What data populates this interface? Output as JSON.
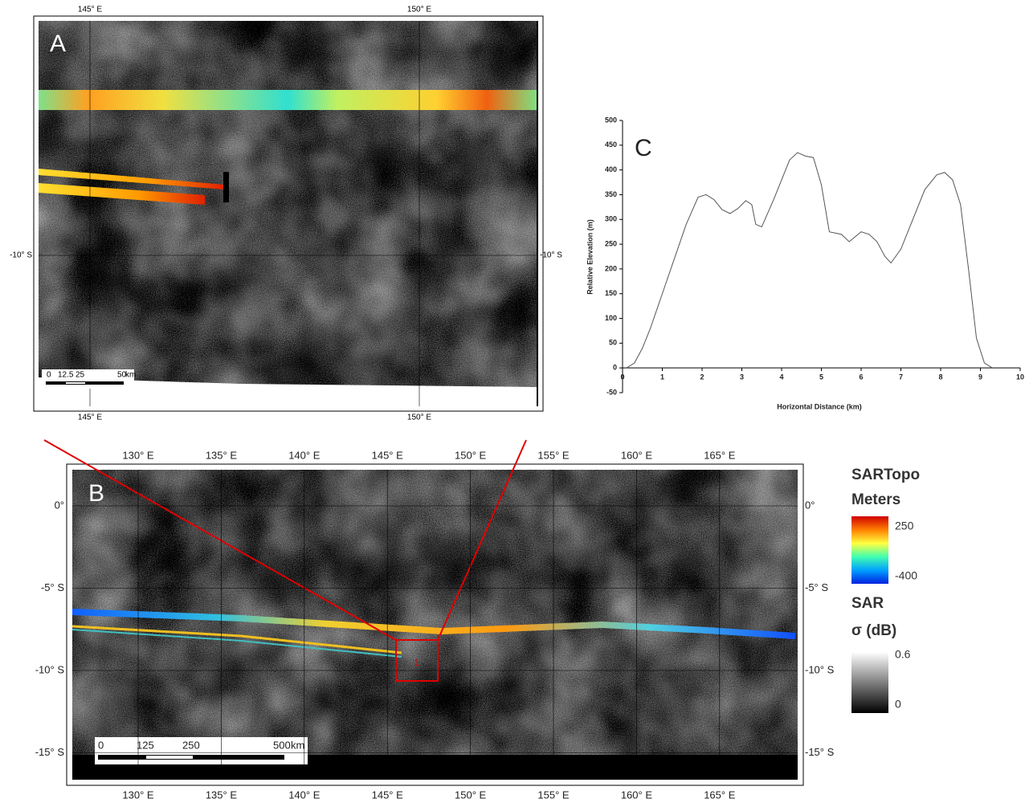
{
  "panels": {
    "a": {
      "label": "A",
      "lon_labels": [
        "145° E",
        "150° E"
      ],
      "lat_labels": [
        "-10° S"
      ],
      "scale_labels": [
        0,
        12.5,
        25,
        50,
        "km"
      ]
    },
    "b": {
      "label": "B",
      "lon_labels": [
        "130° E",
        "135° E",
        "140° E",
        "145° E",
        "150° E",
        "155° E",
        "160° E",
        "165° E"
      ],
      "lat_labels": [
        "0°",
        "-5° S",
        "-10° S",
        "-15° S"
      ],
      "scale_labels": [
        0,
        125,
        250,
        500,
        "km"
      ],
      "box_label": "1"
    },
    "legend": {
      "topo_title": "SARTopo",
      "topo_unit": "Meters",
      "topo_max": 250,
      "topo_min": -400,
      "sar_title": "SAR",
      "sar_unit": "σ (dB)",
      "sar_max": 0.6,
      "sar_min": 0
    }
  },
  "chart_data": {
    "type": "line",
    "label": "C",
    "x_label": "Horizontal Distance (km)",
    "y_label": "Relative Elevation (m)",
    "x": [
      0.1,
      0.3,
      0.5,
      0.7,
      1,
      1.3,
      1.6,
      1.9,
      2.1,
      2.3,
      2.5,
      2.7,
      2.9,
      3.1,
      3.25,
      3.35,
      3.5,
      3.8,
      4.0,
      4.2,
      4.4,
      4.6,
      4.8,
      5.0,
      5.2,
      5.5,
      5.7,
      6.0,
      6.2,
      6.4,
      6.6,
      6.75,
      7.0,
      7.3,
      7.6,
      7.9,
      8.1,
      8.3,
      8.5,
      8.7,
      8.9,
      9.1,
      9.3
    ],
    "values": [
      0,
      10,
      40,
      80,
      150,
      220,
      290,
      345,
      350,
      340,
      320,
      312,
      322,
      338,
      330,
      290,
      285,
      340,
      380,
      420,
      435,
      428,
      425,
      370,
      275,
      270,
      255,
      275,
      270,
      255,
      225,
      212,
      240,
      300,
      360,
      390,
      395,
      380,
      330,
      200,
      60,
      10,
      0
    ],
    "color": "#555555",
    "xlim": [
      0,
      10
    ],
    "xticks": [
      0,
      1,
      2,
      3,
      4,
      5,
      6,
      7,
      8,
      9,
      10
    ],
    "ylim": [
      -50,
      500
    ],
    "yticks": [
      -50,
      0,
      50,
      100,
      150,
      200,
      250,
      300,
      350,
      400,
      450,
      500
    ]
  }
}
